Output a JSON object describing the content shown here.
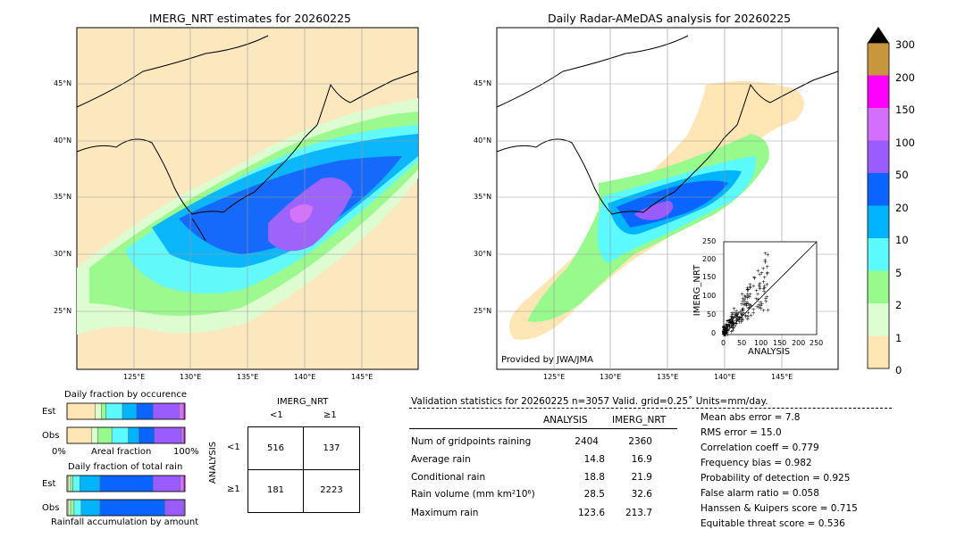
{
  "left_map": {
    "title": "IMERG_NRT estimates for 20260225",
    "lat_labels": [
      "45°N",
      "40°N",
      "35°N",
      "30°N",
      "25°N"
    ],
    "lon_labels": [
      "125°E",
      "130°E",
      "135°E",
      "140°E",
      "145°E"
    ]
  },
  "right_map": {
    "title": "Daily Radar-AMeDAS analysis for 20260225",
    "lat_labels": [
      "45°N",
      "40°N",
      "35°N",
      "30°N",
      "25°N"
    ],
    "lon_labels": [
      "125°E",
      "130°E",
      "135°E",
      "140°E",
      "145°E"
    ],
    "credit": "Provided by JWA/JMA"
  },
  "colorbar": {
    "ticks": [
      "300",
      "200",
      "150",
      "100",
      "50",
      "20",
      "10",
      "5",
      "2",
      "1",
      "0"
    ],
    "colors": [
      "#c8963c",
      "#ff00ff",
      "#d46eff",
      "#9a5cff",
      "#0a64ff",
      "#00b4ff",
      "#5afaff",
      "#96fa8c",
      "#dcffd2",
      "#ffe6b4"
    ]
  },
  "inset_scatter": {
    "xlabel": "ANALYSIS",
    "ylabel": "IMERG_NRT",
    "ticks": [
      "0",
      "50",
      "100",
      "150",
      "200",
      "250"
    ]
  },
  "occurrence": {
    "title": "Daily fraction by occurence",
    "rows": [
      "Est",
      "Obs"
    ],
    "axis_left": "0%",
    "axis_mid": "Areal fraction",
    "axis_right": "100%"
  },
  "total_rain": {
    "title": "Daily fraction of total rain",
    "rows": [
      "Est",
      "Obs"
    ],
    "footer": "Rainfall accumulation by amount"
  },
  "contingency": {
    "col_header": "IMERG_NRT",
    "col_lt": "<1",
    "col_ge": "≥1",
    "row_header": "ANALYSIS",
    "row_lt": "<1",
    "row_ge": "≥1",
    "cells": [
      "516",
      "137",
      "181",
      "2223"
    ]
  },
  "validation": {
    "header": "Validation statistics for 20260225  n=3057 Valid. grid=0.25˚ Units=mm/day.",
    "col_analysis": "ANALYSIS",
    "col_imerg": "IMERG_NRT",
    "rows": [
      {
        "label": "Num of gridpoints raining",
        "analysis": "2404",
        "imerg": "2360"
      },
      {
        "label": "Average rain",
        "analysis": "14.8",
        "imerg": "16.9"
      },
      {
        "label": "Conditional rain",
        "analysis": "18.8",
        "imerg": "21.9"
      },
      {
        "label": "Rain volume (mm km²10⁶)",
        "analysis": "28.5",
        "imerg": "32.6"
      },
      {
        "label": "Maximum rain",
        "analysis": "123.6",
        "imerg": "213.7"
      }
    ],
    "scores": [
      "Mean abs error =    7.8",
      "RMS error =   15.0",
      "Correlation coeff =  0.779",
      "Frequency bias =  0.982",
      "Probability of detection =  0.925",
      "False alarm ratio =  0.058",
      "Hanssen & Kuipers score =  0.715",
      "Equitable threat score =  0.536"
    ]
  },
  "chart_data": {
    "type": "table",
    "contingency_table": {
      "rows": [
        "ANALYSIS <1",
        "ANALYSIS ≥1"
      ],
      "columns": [
        "IMERG_NRT <1",
        "IMERG_NRT ≥1"
      ],
      "values": [
        [
          516,
          137
        ],
        [
          181,
          2223
        ]
      ]
    },
    "statistics": {
      "n": 3057,
      "num_gridpoints_raining": {
        "analysis": 2404,
        "imerg": 2360
      },
      "average_rain": {
        "analysis": 14.8,
        "imerg": 16.9
      },
      "conditional_rain": {
        "analysis": 18.8,
        "imerg": 21.9
      },
      "rain_volume": {
        "analysis": 28.5,
        "imerg": 32.6
      },
      "maximum_rain": {
        "analysis": 123.6,
        "imerg": 213.7
      },
      "mean_abs_error": 7.8,
      "rms_error": 15.0,
      "correlation_coeff": 0.779,
      "frequency_bias": 0.982,
      "probability_of_detection": 0.925,
      "false_alarm_ratio": 0.058,
      "hanssen_kuipers_score": 0.715,
      "equitable_threat_score": 0.536
    },
    "occurrence_fractions": {
      "Est": [
        0.24,
        0.05,
        0.04,
        0.14,
        0.12,
        0.14,
        0.22,
        0.04,
        0.01
      ],
      "Obs": [
        0.21,
        0.05,
        0.12,
        0.14,
        0.09,
        0.13,
        0.23,
        0.02,
        0.01
      ]
    },
    "total_rain_fractions": {
      "Est": [
        0.01,
        0.02,
        0.02,
        0.06,
        0.17,
        0.45,
        0.23,
        0.03,
        0.01
      ],
      "Obs": [
        0.01,
        0.02,
        0.03,
        0.06,
        0.16,
        0.55,
        0.16,
        0.01,
        0.0
      ]
    }
  }
}
